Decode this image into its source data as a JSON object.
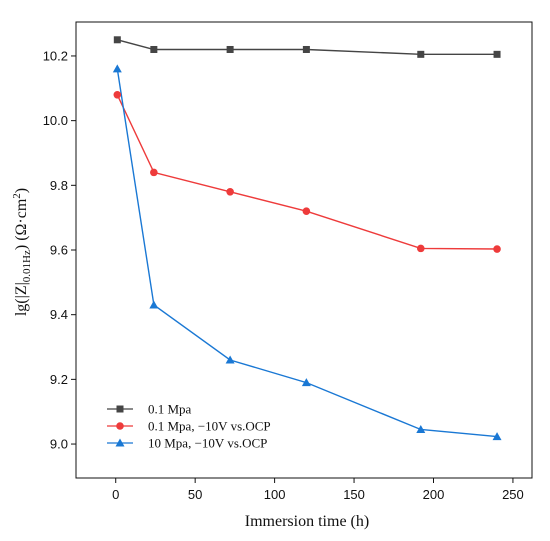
{
  "chart_data": {
    "type": "line",
    "title": "",
    "xlabel": "Immersion time (h)",
    "ylabel": {
      "prefix": "lg(|Z|",
      "subscript": "0.01Hz",
      "middle": ") (Ω·cm",
      "superscript": "2",
      "suffix": ")"
    },
    "xlim": [
      -25,
      262
    ],
    "ylim": [
      8.895,
      10.305
    ],
    "xticks": [
      0,
      50,
      100,
      150,
      200,
      250
    ],
    "yticks": [
      9.0,
      9.2,
      9.4,
      9.6,
      9.8,
      10.0,
      10.2
    ],
    "xtick_labels": [
      "0",
      "50",
      "100",
      "150",
      "200",
      "250"
    ],
    "ytick_labels": [
      "9.0",
      "9.2",
      "9.4",
      "9.6",
      "9.8",
      "10.0",
      "10.2"
    ],
    "grid": false,
    "legend_position": "bottom-left",
    "series": [
      {
        "name": "0.1 Mpa",
        "color": "#454545",
        "marker": "square",
        "x": [
          1,
          24,
          72,
          120,
          192,
          240
        ],
        "y": [
          10.25,
          10.22,
          10.22,
          10.22,
          10.205,
          10.205
        ]
      },
      {
        "name": "0.1 Mpa, −10V vs.OCP",
        "color": "#ee3b3b",
        "marker": "circle",
        "x": [
          1,
          24,
          72,
          120,
          192,
          240
        ],
        "y": [
          10.08,
          9.84,
          9.78,
          9.72,
          9.605,
          9.603
        ]
      },
      {
        "name": "10 Mpa, −10V vs.OCP",
        "color": "#1a78d4",
        "marker": "triangle",
        "x": [
          1,
          24,
          72,
          120,
          192,
          240
        ],
        "y": [
          10.16,
          9.43,
          9.26,
          9.19,
          9.045,
          9.023
        ]
      }
    ]
  }
}
